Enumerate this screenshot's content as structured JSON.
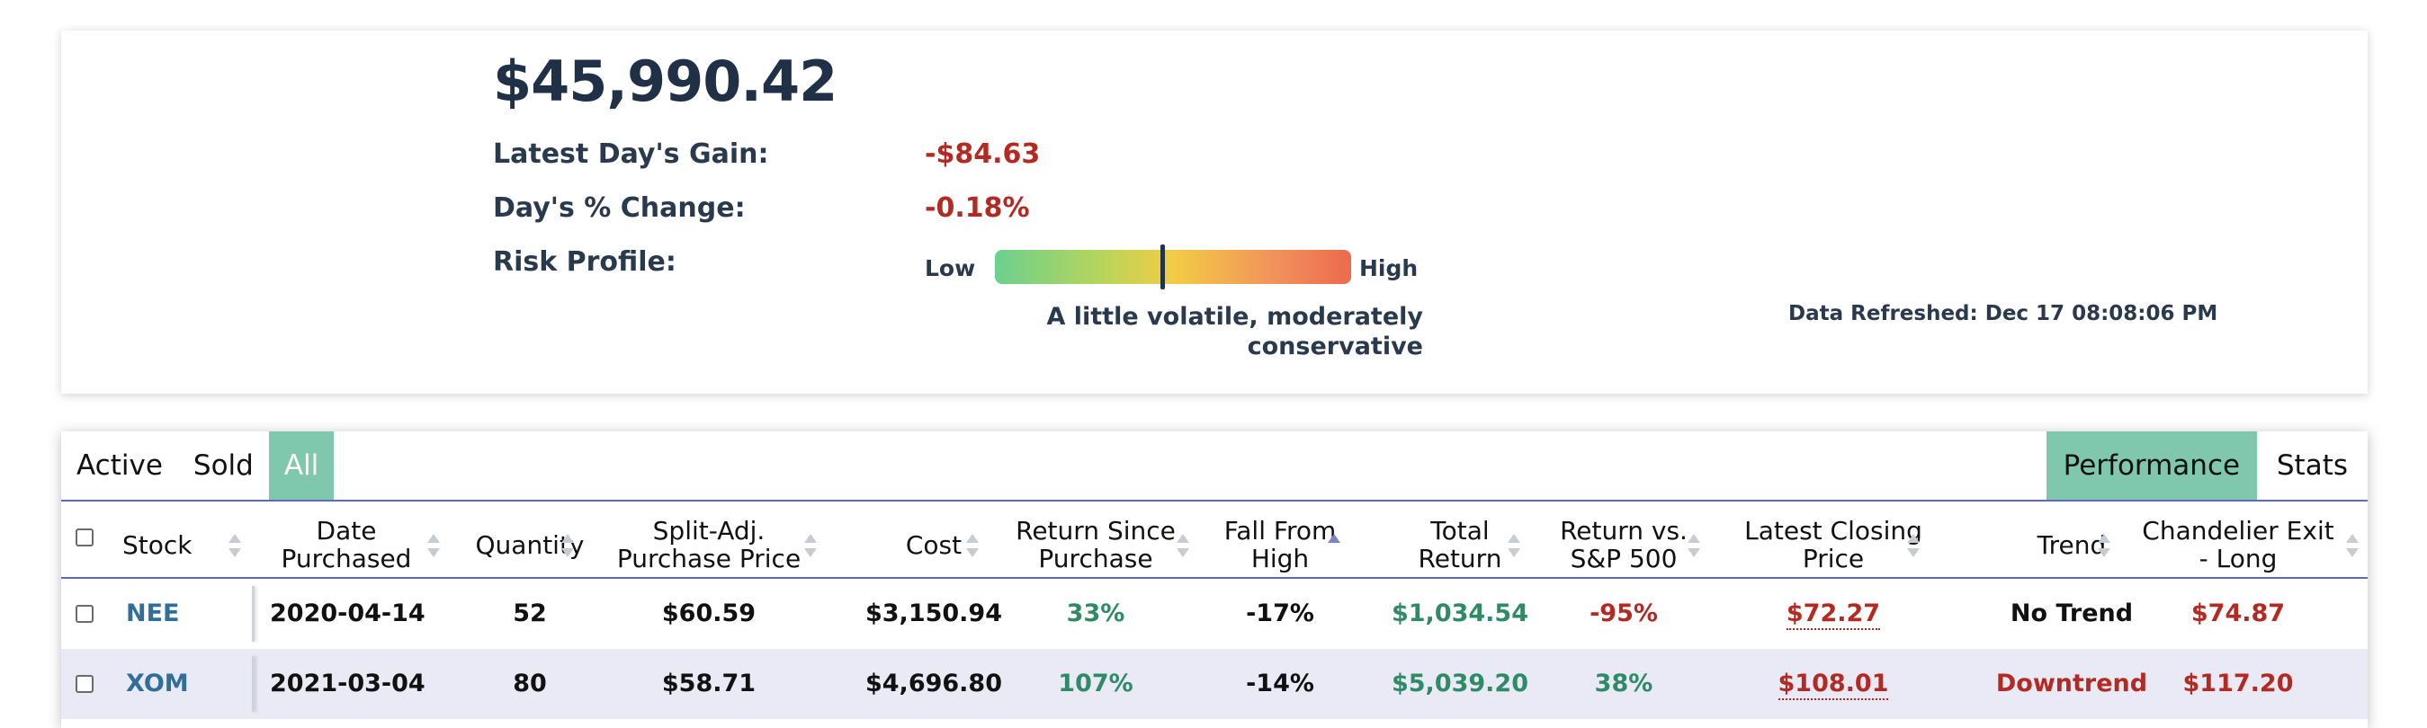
{
  "summary": {
    "total_value": "$45,990.42",
    "day_gain_label": "Latest Day's Gain:",
    "day_gain_value": "-$84.63",
    "day_pct_label": "Day's % Change:",
    "day_pct_value": "-0.18%",
    "risk_label": "Risk Profile:",
    "risk_low": "Low",
    "risk_high": "High",
    "risk_level": 0.47,
    "risk_desc": "A little volatile, moderately conservative",
    "refreshed": "Data Refreshed: Dec 17 08:08:06 PM"
  },
  "tabs": {
    "left": [
      "Active",
      "Sold",
      "All"
    ],
    "left_selected": "All",
    "right": [
      "Performance",
      "Stats"
    ],
    "right_selected": "Performance"
  },
  "columns": [
    "Stock",
    "Date Purchased",
    "Quantity",
    "Split-Adj. Purchase Price",
    "Cost",
    "Return Since Purchase",
    "Fall From High",
    "Total Return",
    "Return vs. S&P 500",
    "Latest Closing Price",
    "Trend",
    "Chandelier Exit - Long"
  ],
  "column_lines": {
    "date": [
      "Date",
      "Purchased"
    ],
    "split": [
      "Split-Adj.",
      "Purchase Price"
    ],
    "ret_since": [
      "Return Since",
      "Purchase"
    ],
    "fall": [
      "Fall From",
      "High"
    ],
    "total": [
      "Total",
      "Return"
    ],
    "vs_sp": [
      "Return vs.",
      "S&P 500"
    ],
    "closing": [
      "Latest Closing",
      "Price"
    ],
    "chandelier": [
      "Chandelier Exit",
      "- Long"
    ]
  },
  "rows": [
    {
      "ticker": "NEE",
      "date": "2020-04-14",
      "quantity": "52",
      "price": "$60.59",
      "cost": "$3,150.94",
      "return_since": "33%",
      "fall_from_high": "-17%",
      "total_return": "$1,034.54",
      "vs_sp": "-95%",
      "closing": "$72.27",
      "trend": "No Trend",
      "chandelier": "$74.87"
    },
    {
      "ticker": "XOM",
      "date": "2021-03-04",
      "quantity": "80",
      "price": "$58.71",
      "cost": "$4,696.80",
      "return_since": "107%",
      "fall_from_high": "-14%",
      "total_return": "$5,039.20",
      "vs_sp": "38%",
      "closing": "$108.01",
      "trend": "Downtrend",
      "chandelier": "$117.20"
    }
  ],
  "colors": {
    "accent_tab": "#7fc7ad",
    "positive": "#2f8a66",
    "negative": "#b22a22",
    "ticker": "#2f6f9a",
    "row_alt": "#e9eaf5"
  }
}
